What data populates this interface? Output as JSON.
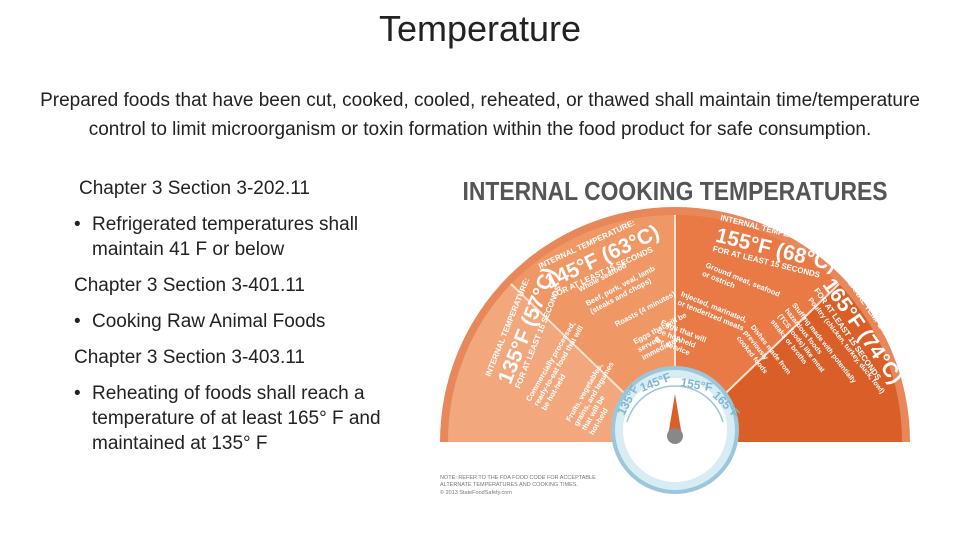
{
  "slide": {
    "title": "Temperature",
    "intro": "Prepared foods that have been cut, cooked, cooled, reheated, or thawed shall maintain time/temperature control to limit microorganism or toxin formation within the food product for safe consumption.",
    "items": [
      {
        "type": "label",
        "text": "Chapter 3 Section  3-202.11"
      },
      {
        "type": "bullet",
        "text": "Refrigerated temperatures shall maintain 41 F or below"
      },
      {
        "type": "label",
        "text": "Chapter 3 Section 3-401.11"
      },
      {
        "type": "bullet",
        "text": "Cooking Raw Animal Foods"
      },
      {
        "type": "label",
        "text": "Chapter 3 Section 3-403.11"
      },
      {
        "type": "bullet",
        "text": "Reheating of foods shall reach a temperature of at least 165° F and maintained at 135° F"
      }
    ]
  },
  "infographic": {
    "heading": "INTERNAL COOKING TEMPERATURES",
    "colors": {
      "outer": "#e8875a",
      "inner": "#f2a77d",
      "mid": "#e97a45",
      "dark": "#d95e28",
      "gauge": "#c8e3ef"
    },
    "segments": [
      {
        "id": "135",
        "label": "INTERNAL TEMPERATURE:",
        "temp": "135°F (57°C)",
        "hold": "FOR AT LEAST 15 SECONDS",
        "foods": [
          "Commercially processed,",
          "ready-to-eat food that will",
          "be hot-held",
          "Fruits, vegetables,",
          "grains, and legumes",
          "that will be",
          "hot-held"
        ]
      },
      {
        "id": "145",
        "label": "INTERNAL TEMPERATURE:",
        "temp": "145°F (63°C)",
        "hold": "FOR AT LEAST 15 SECONDS",
        "foods": [
          "Whole seafood",
          "Beef, pork, veal, lamb",
          "(steaks and chops)",
          "Roasts (4 minutes)",
          "Eggs that will be",
          "served",
          "immediately"
        ]
      },
      {
        "id": "155",
        "label": "INTERNAL TEMPERATURE:",
        "temp": "155°F (68°C)",
        "hold": "FOR AT LEAST 15 SECONDS",
        "foods": [
          "Ground meat, seafood",
          "or ostrich",
          "Injected, marinated,",
          "or tenderized meats",
          "Eggs that will",
          "be hot-held",
          "for service"
        ]
      },
      {
        "id": "165",
        "label": "INTERNAL TEMPERATURE:",
        "temp": "165°F (74°C)",
        "hold": "FOR AT LEAST 15 SECONDS",
        "foods": [
          "Poultry (chicken, turkey, duck, fowl)",
          "Stuffing made with potentially",
          "hazardous foods",
          "(TCS foods) like meat",
          "steaks or broths",
          "Dishes made from",
          "previously",
          "cooked foods"
        ]
      }
    ],
    "dial_labels": [
      "135°F",
      "145°F",
      "155°F",
      "165°F"
    ],
    "footnote": [
      "NOTE: REFER TO THE FDA FOOD CODE FOR ACCEPTABLE",
      "ALTERNATE TEMPERATURES AND COOKING TIMES.",
      "© 2013 StateFoodSafety.com"
    ]
  }
}
